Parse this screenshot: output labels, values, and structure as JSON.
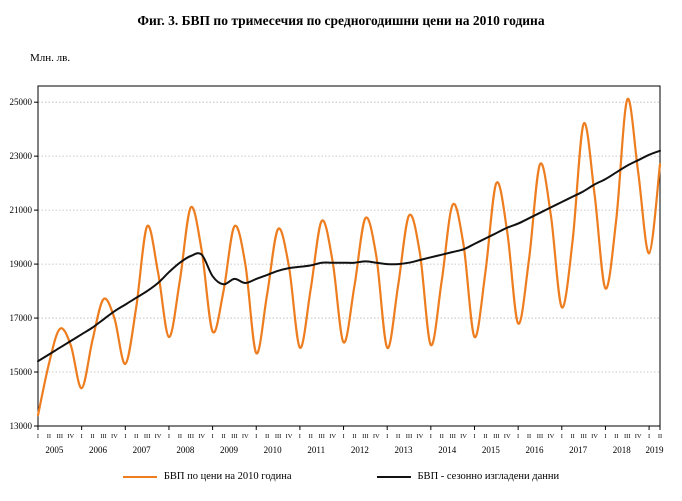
{
  "title": "Фиг. 3. БВП по тримесечия по средногодишни цени на 2010 година",
  "y_axis_unit_label": "Млн. лв.",
  "legend": {
    "items": [
      {
        "label": "БВП по цени на 2010 година",
        "color": "#ED7D1F"
      },
      {
        "label": "БВП - сезонно изгладени данни",
        "color": "#111111"
      }
    ]
  },
  "chart_data": {
    "type": "line",
    "title": "Фиг. 3. БВП по тримесечия по средногодишни цени на 2010 година",
    "ylabel": "Млн. лв.",
    "ylim": [
      13000,
      25000
    ],
    "ytick_step": 2000,
    "grid": "horizontal",
    "legend_position": "bottom",
    "years": [
      "2005",
      "2006",
      "2007",
      "2008",
      "2009",
      "2010",
      "2011",
      "2012",
      "2013",
      "2014",
      "2015",
      "2016",
      "2017",
      "2018",
      "2019"
    ],
    "quarters_per_year": [
      4,
      4,
      4,
      4,
      4,
      4,
      4,
      4,
      4,
      4,
      4,
      4,
      4,
      4,
      2
    ],
    "quarter_labels": [
      "I",
      "II",
      "III",
      "IV"
    ],
    "series": [
      {
        "name": "БВП по цени на 2010 година",
        "color": "#ED7D1F",
        "width": 2.2,
        "values": [
          13400,
          15300,
          16600,
          16000,
          14400,
          16200,
          17700,
          17000,
          15300,
          17400,
          20400,
          18700,
          16300,
          18400,
          21100,
          19500,
          16500,
          18000,
          20400,
          19000,
          15700,
          17900,
          20300,
          18900,
          15900,
          18100,
          20600,
          19100,
          16100,
          18200,
          20700,
          19300,
          15900,
          18200,
          20800,
          19400,
          16000,
          18400,
          21200,
          19700,
          16300,
          18700,
          22000,
          20200,
          16800,
          19200,
          22700,
          20800,
          17400,
          19900,
          24200,
          21600,
          18100,
          20700,
          25100,
          22400,
          19400,
          22700
        ]
      },
      {
        "name": "БВП - сезонно изгладени данни",
        "color": "#111111",
        "width": 2.0,
        "values": [
          15400,
          15650,
          15900,
          16150,
          16400,
          16650,
          16950,
          17250,
          17500,
          17750,
          18000,
          18300,
          18700,
          19050,
          19300,
          19350,
          18550,
          18250,
          18450,
          18300,
          18450,
          18600,
          18750,
          18850,
          18900,
          18950,
          19050,
          19050,
          19050,
          19050,
          19100,
          19050,
          19000,
          19000,
          19050,
          19150,
          19250,
          19350,
          19450,
          19550,
          19750,
          19950,
          20150,
          20350,
          20500,
          20700,
          20900,
          21100,
          21300,
          21500,
          21700,
          21950,
          22150,
          22400,
          22650,
          22850,
          23050,
          23200
        ]
      }
    ]
  }
}
